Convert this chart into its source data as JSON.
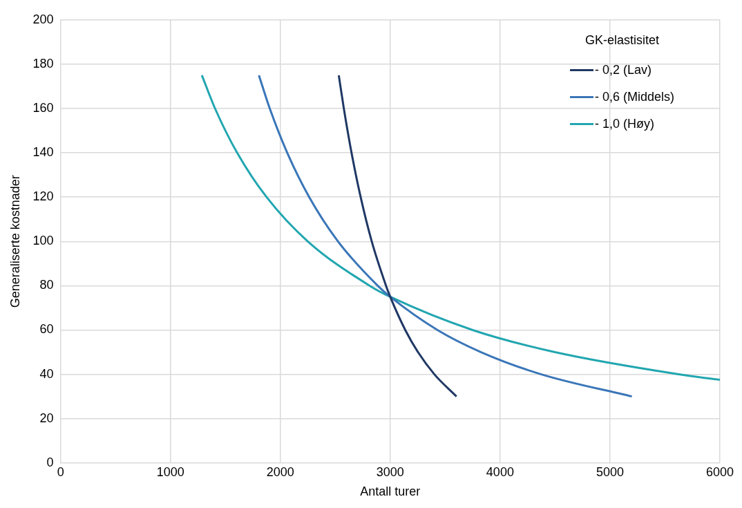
{
  "chart_data": {
    "type": "line",
    "xlabel": "Antall turer",
    "ylabel": "Generaliserte kostnader",
    "legend_title": "GK-elastisitet",
    "legend": "top right",
    "grid": true,
    "marker": "none",
    "line_style": "solid",
    "xlim": [
      0,
      6000
    ],
    "xticks": [
      0,
      1000,
      2000,
      3000,
      4000,
      5000,
      6000
    ],
    "ylim": [
      0,
      200
    ],
    "yticks": [
      0,
      20,
      40,
      60,
      80,
      100,
      120,
      140,
      160,
      180,
      200
    ],
    "series": [
      {
        "name": "- 0,2 (Lav)",
        "color": "#1f3864",
        "x": [
          2532,
          2578,
          2648,
          2731,
          2832,
          2962,
          3000,
          3137,
          3253,
          3402,
          3603
        ],
        "values": [
          175,
          160,
          140,
          120,
          100,
          80,
          75,
          60,
          50,
          40,
          30
        ]
      },
      {
        "name": "- 0,6 (Middels)",
        "color": "#3a76b8",
        "x": [
          1805,
          1904,
          2063,
          2263,
          2525,
          2886,
          3000,
          3430,
          3827,
          4375,
          5199
        ],
        "values": [
          175,
          160,
          140,
          120,
          100,
          80,
          75,
          60,
          50,
          40,
          30
        ]
      },
      {
        "name": "- 1,0 (Høy)",
        "color": "#22a6b0",
        "x": [
          1286,
          1406,
          1607,
          1875,
          2250,
          2813,
          3000,
          3750,
          4500,
          5625,
          6000
        ],
        "values": [
          175,
          160,
          140,
          120,
          100,
          80,
          75,
          60,
          50,
          40,
          37.5
        ]
      }
    ]
  }
}
